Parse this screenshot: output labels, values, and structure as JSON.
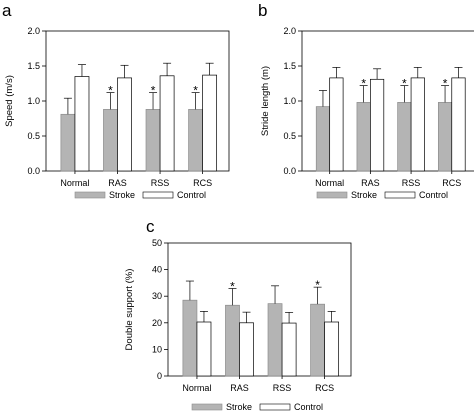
{
  "colors": {
    "stroke": "#b4b4b4",
    "control": "#ffffff",
    "outline": "#000000"
  },
  "legend": {
    "stroke_label": "Stroke",
    "control_label": "Control"
  },
  "significance_marker": "*",
  "chart_data": [
    {
      "panel": "a",
      "type": "bar",
      "ylabel": "Speed (m/s)",
      "ylim": [
        0.0,
        2.0
      ],
      "yticks": [
        "0.0",
        "0.5",
        "1.0",
        "1.5",
        "2.0"
      ],
      "categories": [
        "Normal",
        "RAS",
        "RSS",
        "RCS"
      ],
      "series": [
        {
          "name": "Stroke",
          "values": [
            0.81,
            0.88,
            0.88,
            0.88
          ],
          "errors": [
            0.23,
            0.24,
            0.24,
            0.24
          ]
        },
        {
          "name": "Control",
          "values": [
            1.35,
            1.33,
            1.36,
            1.37
          ],
          "errors": [
            0.17,
            0.18,
            0.18,
            0.17
          ]
        }
      ],
      "significant": [
        false,
        true,
        true,
        true
      ],
      "grid": false,
      "legend_position": "bottom"
    },
    {
      "panel": "b",
      "type": "bar",
      "ylabel": "Stride length (m)",
      "ylim": [
        0.0,
        2.0
      ],
      "yticks": [
        "0.0",
        "0.5",
        "1.0",
        "1.5",
        "2.0"
      ],
      "categories": [
        "Normal",
        "RAS",
        "RSS",
        "RCS"
      ],
      "series": [
        {
          "name": "Stroke",
          "values": [
            0.92,
            0.98,
            0.98,
            0.98
          ],
          "errors": [
            0.23,
            0.24,
            0.24,
            0.24
          ]
        },
        {
          "name": "Control",
          "values": [
            1.33,
            1.31,
            1.33,
            1.33
          ],
          "errors": [
            0.15,
            0.15,
            0.15,
            0.15
          ]
        }
      ],
      "significant": [
        false,
        true,
        true,
        true
      ],
      "grid": false,
      "legend_position": "bottom"
    },
    {
      "panel": "c",
      "type": "bar",
      "ylabel": "Double support (%)",
      "ylim": [
        0,
        50
      ],
      "yticks": [
        "0",
        "10",
        "20",
        "30",
        "40",
        "50"
      ],
      "categories": [
        "Normal",
        "RAS",
        "RSS",
        "RCS"
      ],
      "series": [
        {
          "name": "Stroke",
          "values": [
            28.5,
            26.6,
            27.2,
            27.0
          ],
          "errors": [
            7.2,
            6.3,
            6.7,
            6.4
          ]
        },
        {
          "name": "Control",
          "values": [
            20.3,
            20.0,
            19.9,
            20.3
          ],
          "errors": [
            4.0,
            4.0,
            4.0,
            4.0
          ]
        }
      ],
      "significant": [
        false,
        true,
        false,
        true
      ],
      "grid": false,
      "legend_position": "bottom"
    }
  ]
}
